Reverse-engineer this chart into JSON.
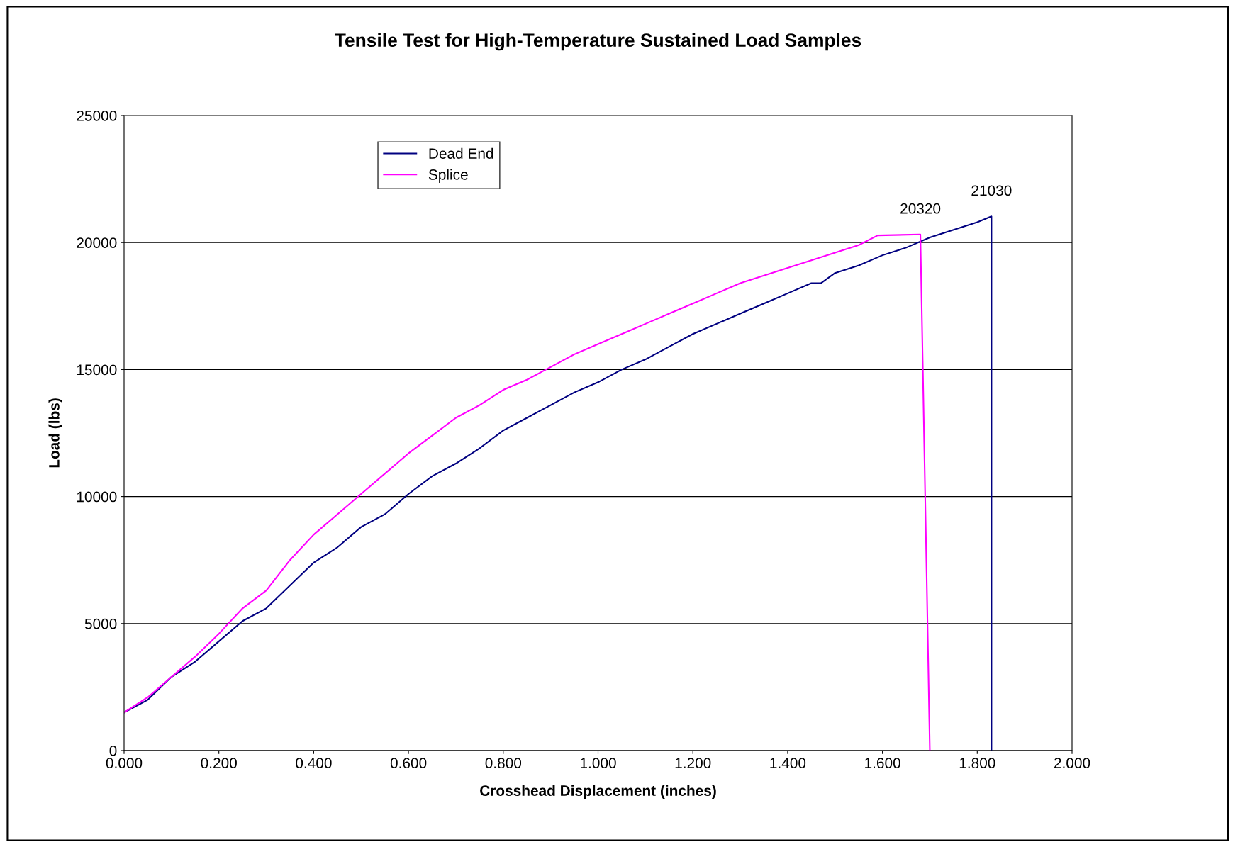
{
  "chart_data": {
    "type": "line",
    "title": "Tensile Test for High-Temperature Sustained Load Samples",
    "xlabel": "Crosshead Displacement (inches)",
    "ylabel": "Load (lbs)",
    "series": [
      {
        "name": "Dead End",
        "color": "#000080",
        "x": [
          0,
          0.05,
          0.1,
          0.15,
          0.2,
          0.25,
          0.3,
          0.35,
          0.4,
          0.45,
          0.5,
          0.55,
          0.6,
          0.65,
          0.7,
          0.75,
          0.8,
          0.85,
          0.9,
          0.95,
          1.0,
          1.05,
          1.1,
          1.15,
          1.2,
          1.25,
          1.3,
          1.35,
          1.4,
          1.45,
          1.47,
          1.5,
          1.55,
          1.6,
          1.65,
          1.7,
          1.75,
          1.8,
          1.83,
          1.83
        ],
        "values": [
          1500,
          2000,
          2900,
          3500,
          4300,
          5100,
          5600,
          6500,
          7400,
          8000,
          8800,
          9300,
          10100,
          10800,
          11300,
          11900,
          12600,
          13100,
          13600,
          14100,
          14500,
          15000,
          15400,
          15900,
          16400,
          16800,
          17200,
          17600,
          18000,
          18400,
          18400,
          18800,
          19100,
          19500,
          19800,
          20200,
          20500,
          20800,
          21030,
          0
        ]
      },
      {
        "name": "Splice",
        "color": "#ff00ff",
        "x": [
          0,
          0.05,
          0.1,
          0.15,
          0.2,
          0.25,
          0.3,
          0.35,
          0.4,
          0.45,
          0.5,
          0.55,
          0.6,
          0.65,
          0.7,
          0.75,
          0.8,
          0.85,
          0.9,
          0.95,
          1.0,
          1.05,
          1.1,
          1.15,
          1.2,
          1.25,
          1.3,
          1.35,
          1.4,
          1.45,
          1.5,
          1.55,
          1.59,
          1.68,
          1.7
        ],
        "values": [
          1500,
          2100,
          2900,
          3700,
          4600,
          5600,
          6300,
          7500,
          8500,
          9300,
          10100,
          10900,
          11700,
          12400,
          13100,
          13600,
          14200,
          14600,
          15100,
          15600,
          16000,
          16400,
          16800,
          17200,
          17600,
          18000,
          18400,
          18700,
          19000,
          19300,
          19600,
          19900,
          20280,
          20320,
          0
        ]
      }
    ],
    "annotations": [
      {
        "text": "20320",
        "x": 1.68,
        "y": 20320
      },
      {
        "text": "21030",
        "x": 1.83,
        "y": 21030
      }
    ],
    "xlim": [
      0,
      2
    ],
    "xticks": [
      {
        "value": 0,
        "label": "0.000"
      },
      {
        "value": 0.2,
        "label": "0.200"
      },
      {
        "value": 0.4,
        "label": "0.400"
      },
      {
        "value": 0.6,
        "label": "0.600"
      },
      {
        "value": 0.8,
        "label": "0.800"
      },
      {
        "value": 1.0,
        "label": "1.000"
      },
      {
        "value": 1.2,
        "label": "1.200"
      },
      {
        "value": 1.4,
        "label": "1.400"
      },
      {
        "value": 1.6,
        "label": "1.600"
      },
      {
        "value": 1.8,
        "label": "1.800"
      },
      {
        "value": 2.0,
        "label": "2.000"
      }
    ],
    "ylim": [
      0,
      25000
    ],
    "yticks": [
      0,
      5000,
      10000,
      15000,
      20000,
      25000
    ],
    "grid": "y",
    "legend": "top left",
    "marker": "none",
    "line_style": "solid"
  }
}
